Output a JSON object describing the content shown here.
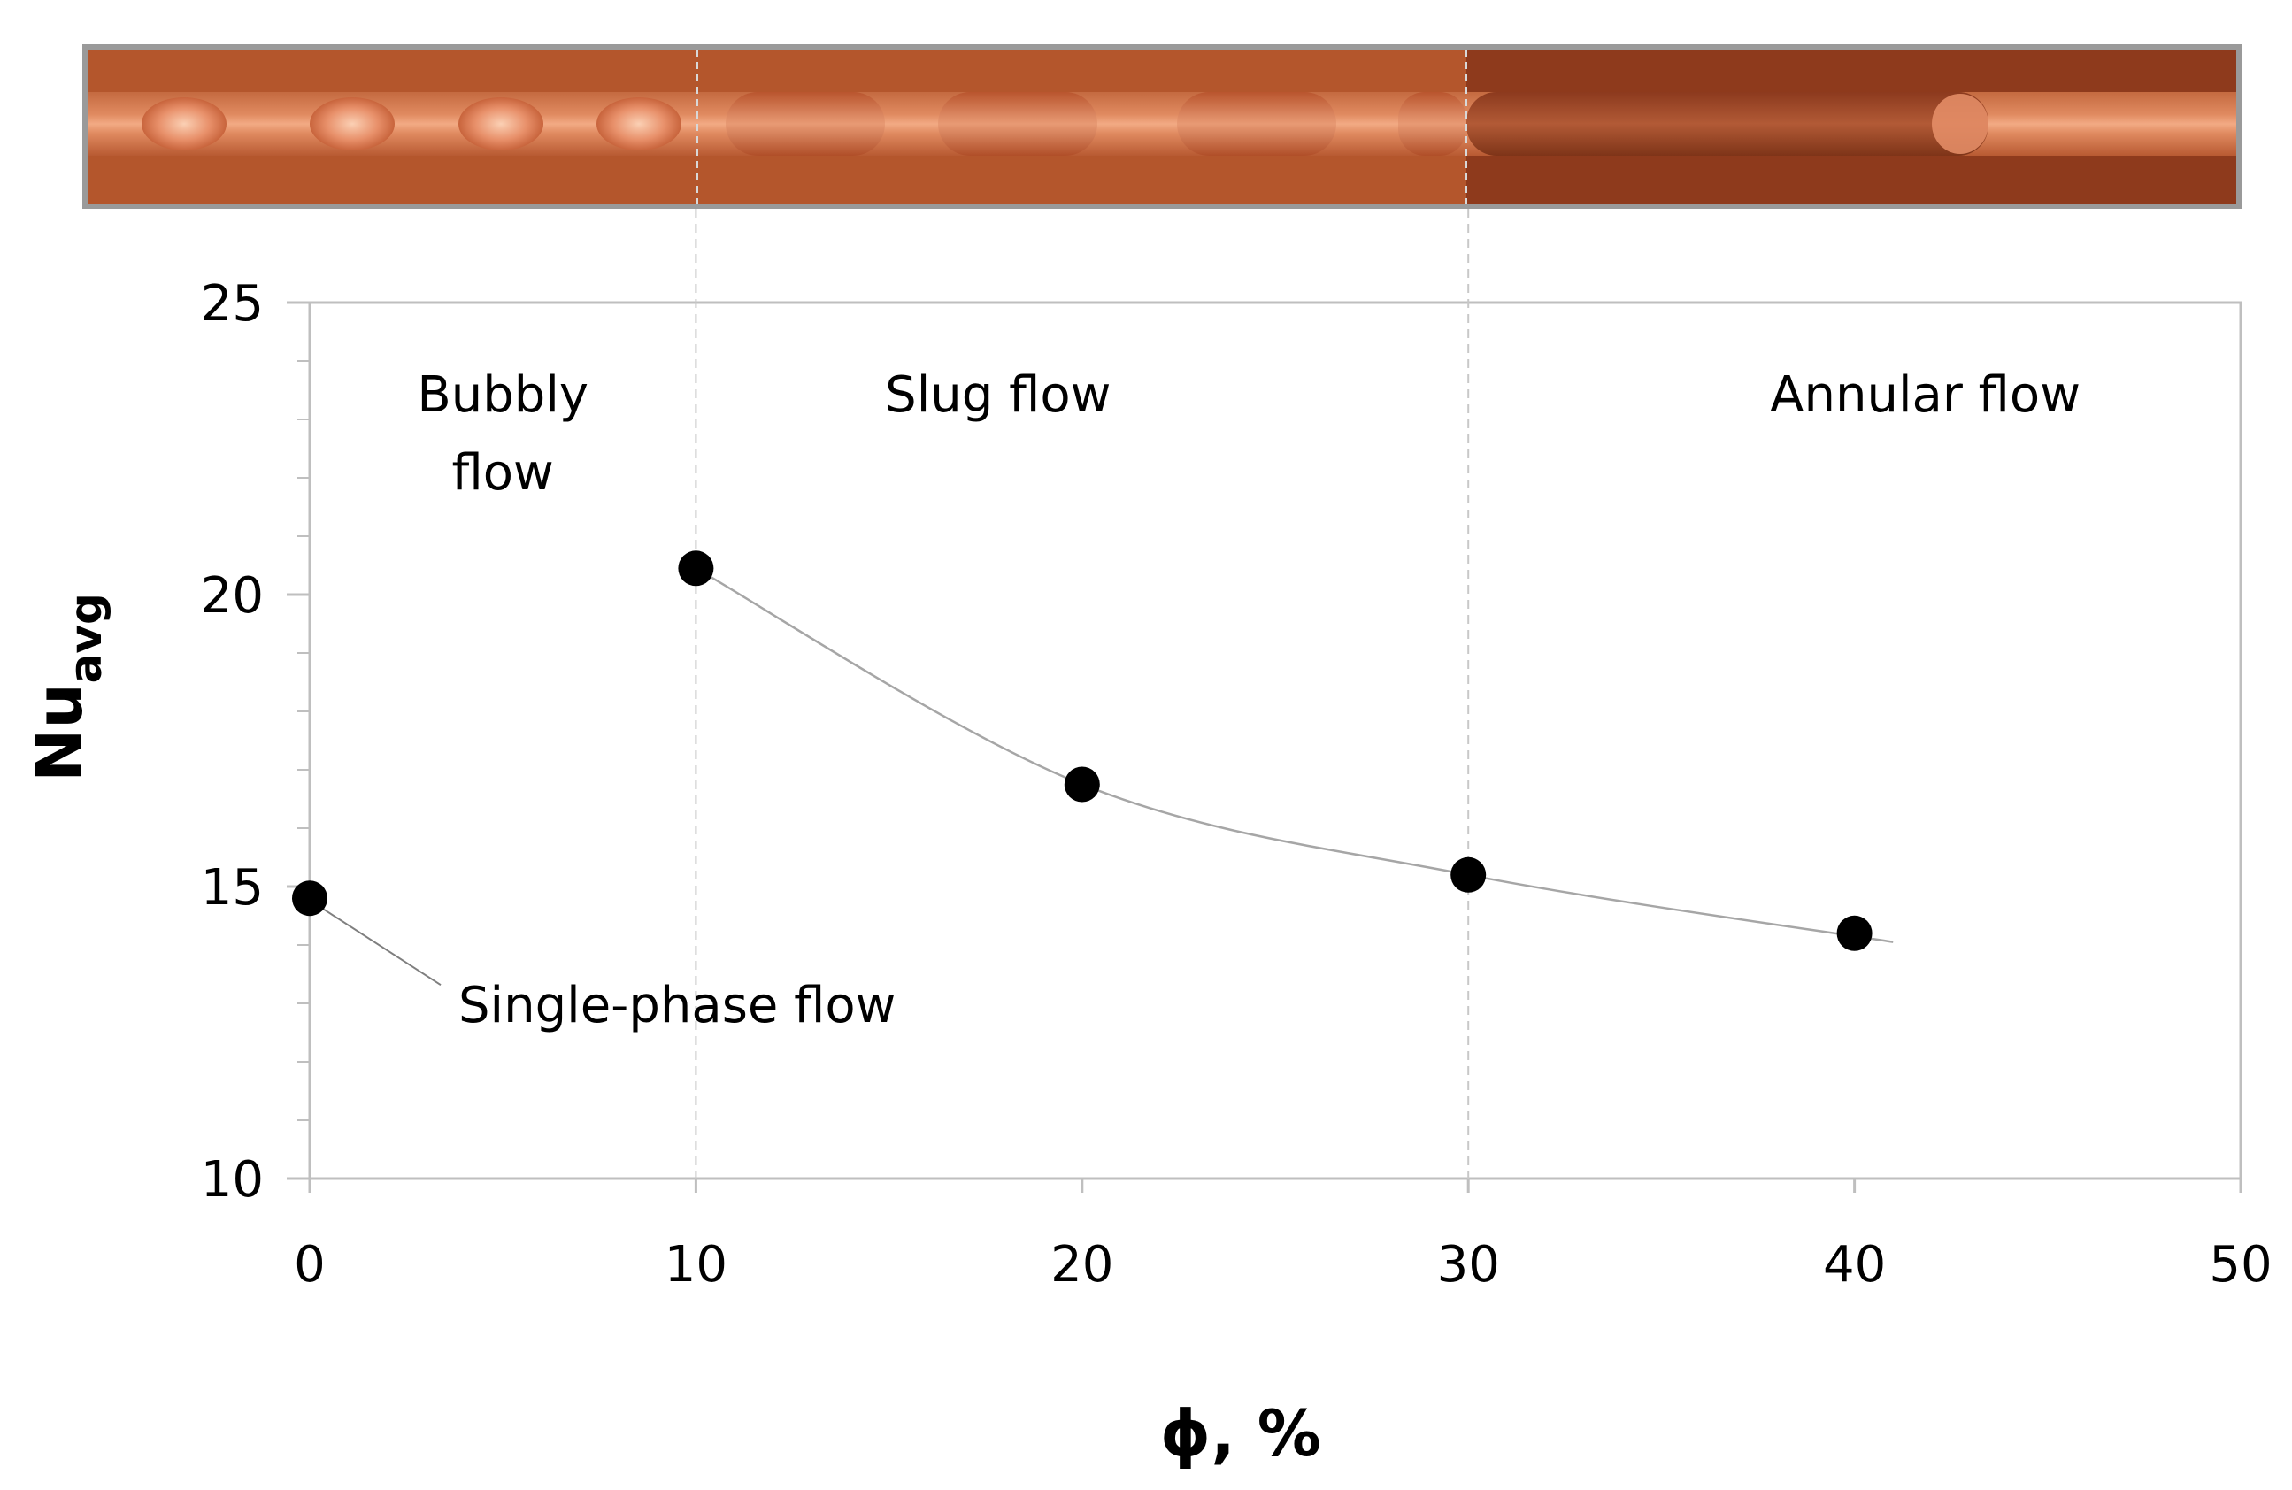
{
  "chart_data": {
    "type": "scatter",
    "xlabel": "ϕ, %",
    "ylabel": "Nu",
    "ylabel_sub": "avg",
    "xlim": [
      0,
      50
    ],
    "ylim": [
      10,
      25
    ],
    "x_ticks": [
      0,
      10,
      20,
      30,
      40,
      50
    ],
    "y_ticks": [
      10,
      15,
      20,
      25
    ],
    "grid": false,
    "series": [
      {
        "name": "Nu_avg",
        "x": [
          0,
          10,
          20,
          30,
          40
        ],
        "y": [
          14.8,
          20.45,
          16.75,
          15.2,
          14.2
        ]
      }
    ],
    "trendline": {
      "x": [
        10,
        20,
        30,
        41
      ],
      "y": [
        20.45,
        16.75,
        15.2,
        14.05
      ]
    },
    "regions": [
      {
        "label_line1": "Bubbly",
        "label_line2": "flow",
        "x_from": 0,
        "x_to": 10
      },
      {
        "label_line1": "Slug flow",
        "label_line2": "",
        "x_from": 10,
        "x_to": 30
      },
      {
        "label_line1": "Annular flow",
        "label_line2": "",
        "x_from": 30,
        "x_to": 50
      }
    ],
    "boundaries": [
      10,
      30
    ],
    "annotation": {
      "text": "Single-phase flow",
      "x": 0,
      "y": 14.8
    },
    "photo_strip": {
      "colors": {
        "copper": "#b4562c",
        "dark_copper": "#8e3a1c",
        "bubble": "#f0a27a",
        "border": "#8a8a8a"
      }
    },
    "colors": {
      "marker": "#000000",
      "trendline": "#a6a6a6",
      "axis": "#bfbfbf",
      "boundary": "#c8c8c8"
    }
  }
}
